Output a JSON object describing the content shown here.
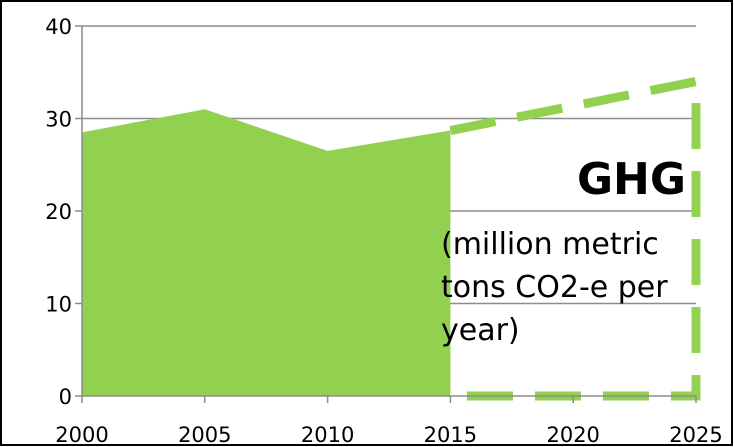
{
  "chart_data": {
    "type": "area",
    "title": "GHG",
    "subtitle_lines": [
      "(million metric",
      "tons CO2-e per",
      "year)"
    ],
    "xlabel": "",
    "ylabel": "",
    "xlim": [
      2000,
      2025
    ],
    "ylim": [
      0,
      40
    ],
    "x_ticks": [
      2000,
      2005,
      2010,
      2015,
      2020,
      2025
    ],
    "y_ticks": [
      0,
      10,
      20,
      30,
      40
    ],
    "grid": true,
    "legend": "none",
    "series": [
      {
        "style": "solid-area",
        "color": "#92d050",
        "points": [
          [
            2000,
            28.5
          ],
          [
            2005,
            31
          ],
          [
            2010,
            26.5
          ],
          [
            2015,
            28.7
          ]
        ]
      },
      {
        "style": "dashed-outline",
        "color": "#92d050",
        "points": [
          [
            2015,
            28.7
          ],
          [
            2025,
            34
          ]
        ]
      }
    ]
  }
}
